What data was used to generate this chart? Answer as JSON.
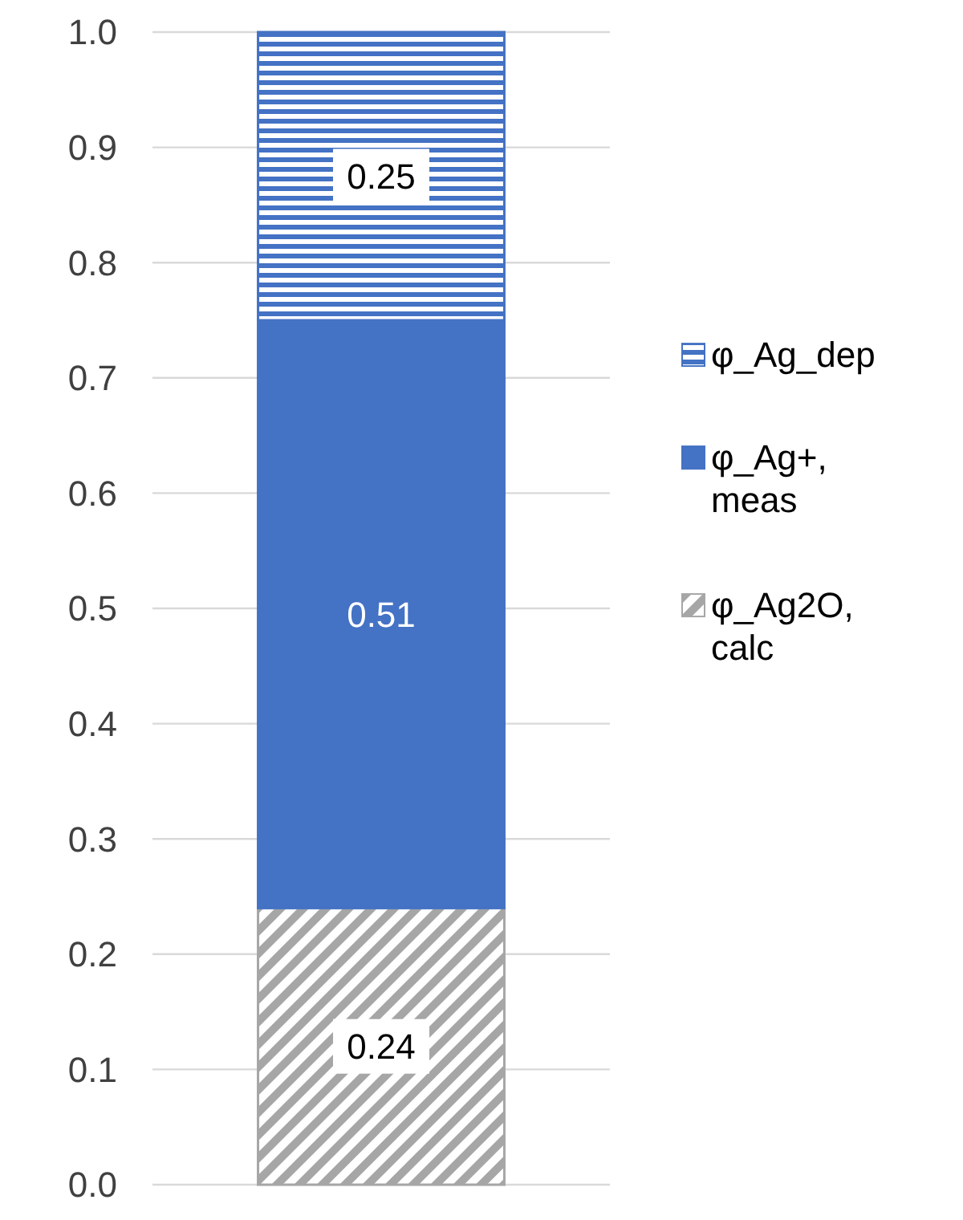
{
  "chart_data": {
    "type": "bar",
    "stacked": true,
    "categories": [
      null
    ],
    "series": [
      {
        "name": "φ_Ag2O, calc",
        "color": "#a6a6a6",
        "values": [
          0.24
        ]
      },
      {
        "name": "φ_Ag+, meas",
        "color": "#4472c4",
        "values": [
          0.51
        ]
      },
      {
        "name": "φ_Ag_dep",
        "color": "#4472c4",
        "values": [
          0.25
        ]
      }
    ],
    "ylim": [
      0,
      1
    ],
    "yticks": [
      {
        "value": 0,
        "label": "0.0"
      },
      0.1,
      0.2,
      0.3,
      0.4,
      0.5,
      0.6,
      0.7,
      0.8,
      0.9,
      {
        "value": 1,
        "label": "1.0"
      }
    ],
    "grid": "y",
    "legend": "right",
    "data_labels": true
  }
}
